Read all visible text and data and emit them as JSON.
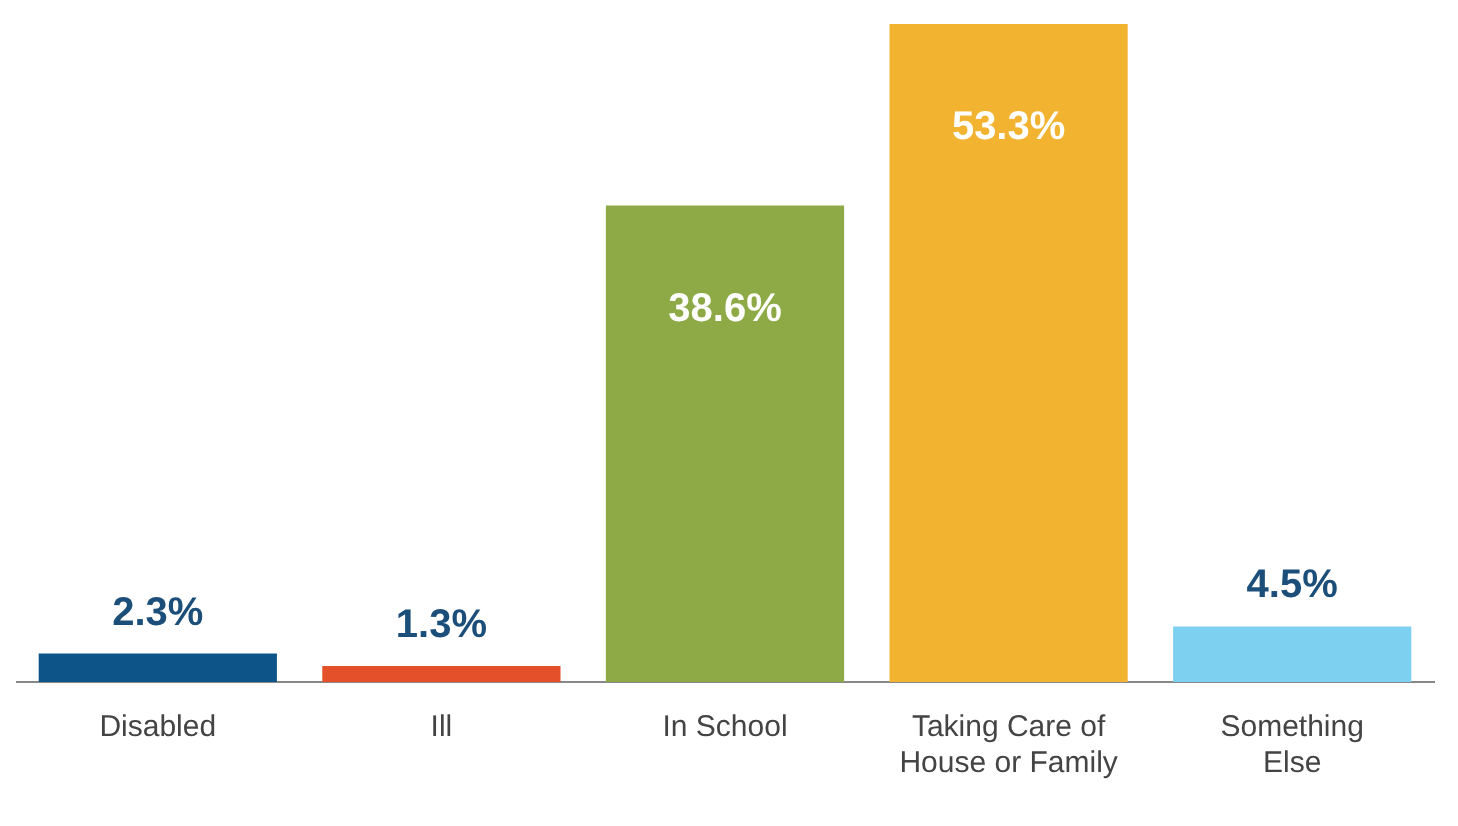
{
  "chart_data": {
    "type": "bar",
    "categories": [
      "Disabled",
      "Ill",
      "In School",
      "Taking Care of House or Family",
      "Something Else"
    ],
    "values": [
      2.3,
      1.3,
      38.6,
      53.3,
      4.5
    ],
    "colors": [
      "#0d5589",
      "#e4502a",
      "#8eaa47",
      "#f2b331",
      "#7dd0f0"
    ],
    "value_labels": [
      "2.3%",
      "1.3%",
      "38.6%",
      "53.3%",
      "4.5%"
    ],
    "grid": false,
    "legend": false,
    "tick_labels": "x"
  }
}
